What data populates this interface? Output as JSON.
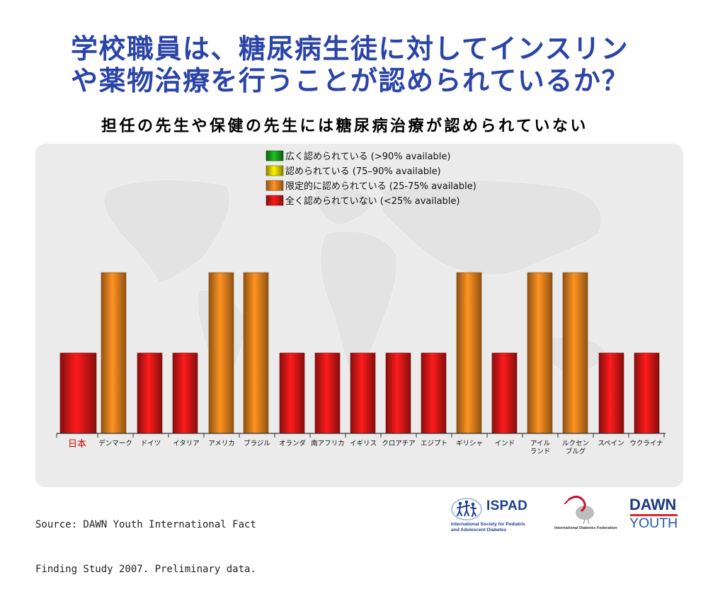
{
  "title": {
    "line1": "学校職員は、糖尿病生徒に対してインスリン",
    "line2": "や薬物治療を行うことが認められているか？"
  },
  "chart_data": {
    "type": "bar",
    "title": "担任の先生や保健の先生には糖尿病治療が認められていない",
    "legend_position": "top",
    "grid": false,
    "ylim": [
      0,
      4
    ],
    "legend": [
      {
        "label": "広く認められている (>90% available)",
        "color": "#1a9a1a"
      },
      {
        "label": "認められている (75–90% available)",
        "color": "#e0d800"
      },
      {
        "label": "限定的に認められている (25-75% available)",
        "color": "#f08a20"
      },
      {
        "label": "全く認められていない (<25% available)",
        "color": "#e01818"
      }
    ],
    "categories": [
      "日本",
      "デンマーク",
      "ドイツ",
      "イタリア",
      "アメリカ",
      "ブラジル",
      "オランダ",
      "南アフリカ",
      "イギリス",
      "クロアチア",
      "エジプト",
      "ギリシャ",
      "インド",
      "アイル\nランド",
      "ルクセン\nブルグ",
      "スペイン",
      "ウクライナ"
    ],
    "values": [
      1,
      2,
      1,
      1,
      2,
      2,
      1,
      1,
      1,
      1,
      1,
      2,
      1,
      2,
      2,
      1,
      1
    ],
    "highlight_index": 0,
    "highlight_color": "#d00000"
  },
  "source": {
    "line1": "Source: DAWN Youth International Fact",
    "line2": "Finding Study 2007. Preliminary data."
  },
  "logos": {
    "ispad": {
      "name": "ISPAD",
      "subtitle_line1": "International Society for Pediatric",
      "subtitle_line2": "and Adolescent Diabetes"
    },
    "idf": {
      "name": "International Diabetes Federation"
    },
    "dawn": {
      "line1": "DAWN",
      "line2": "YOUTH"
    }
  },
  "colors": {
    "title-text": "#2b44a8",
    "chart-panel": "#ebebeb",
    "ispad-blue": "#1c3f8f",
    "idf-red": "#c8102e",
    "dawn-blue": "#1d3b7e",
    "youth-blue": "#2459a9",
    "dawn-accent": "#d42a2a"
  }
}
